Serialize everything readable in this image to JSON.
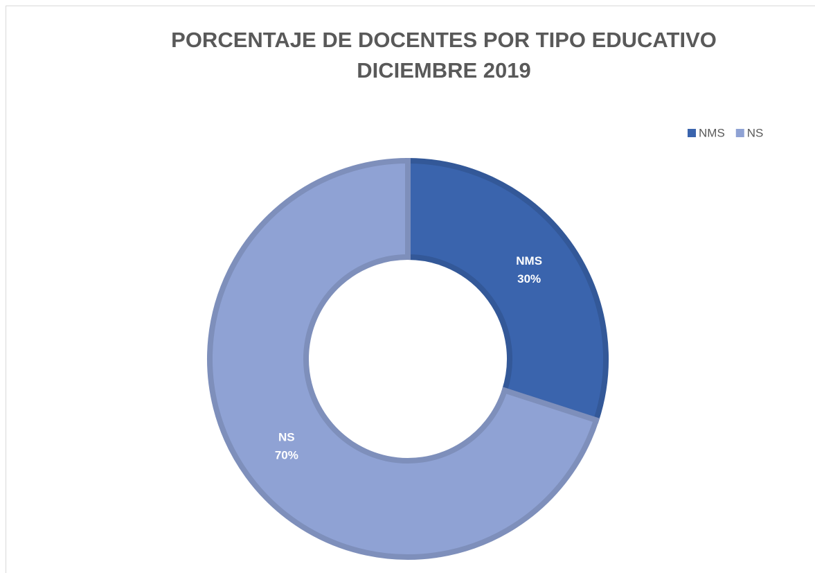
{
  "chart_data": {
    "type": "doughnut",
    "title": "PORCENTAJE DE DOCENTES POR TIPO  EDUCATIVO",
    "subtitle": "DICIEMBRE 2019",
    "categories": [
      "NMS",
      "NS"
    ],
    "values": [
      30,
      70
    ],
    "value_labels": [
      "30%",
      "70%"
    ],
    "colors": [
      "#3a64ad",
      "#8fa2d4"
    ],
    "legend": "top-right"
  }
}
